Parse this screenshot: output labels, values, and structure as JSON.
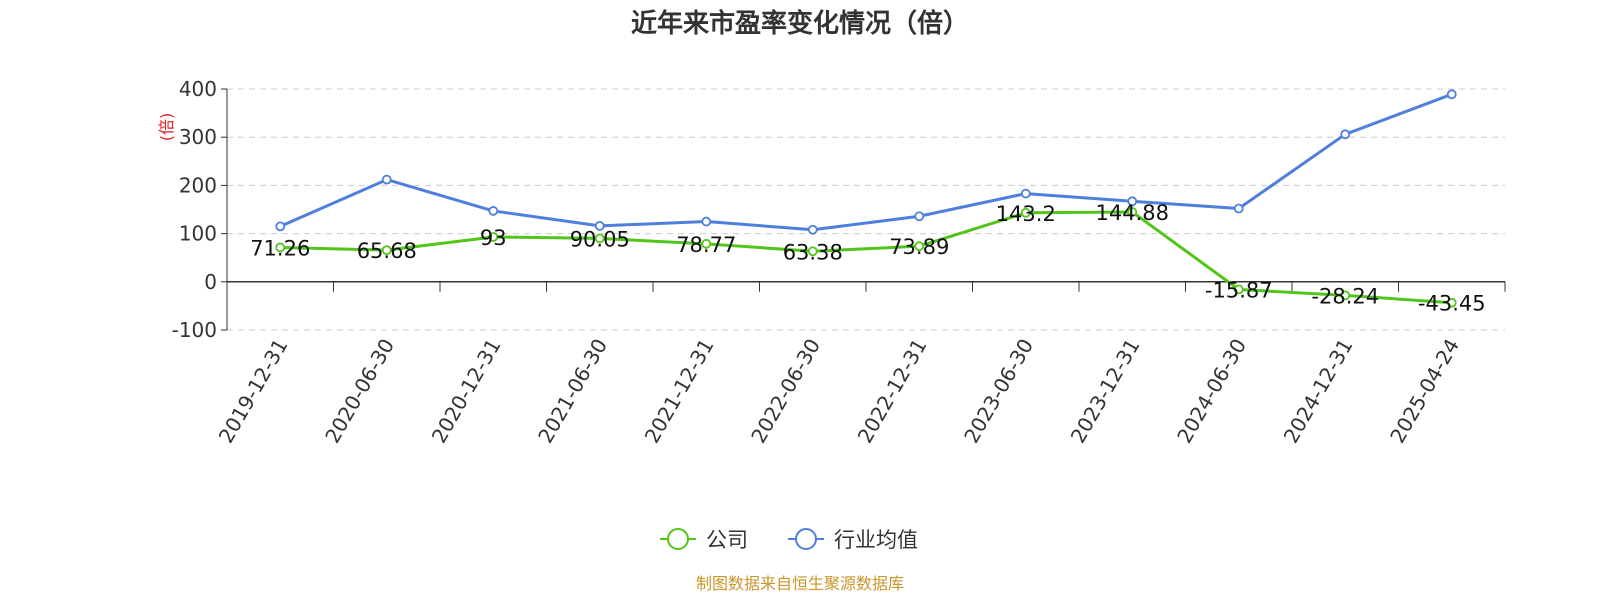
{
  "chart_data": {
    "type": "line",
    "title": "近年来市盈率变化情况（倍）",
    "ylabel": "(倍)",
    "ylim": [
      -100,
      400
    ],
    "yticks": [
      -100,
      0,
      100,
      200,
      300,
      400
    ],
    "grid": true,
    "legend_position": "bottom-center",
    "categories": [
      "2019-12-31",
      "2020-06-30",
      "2020-12-31",
      "2021-06-30",
      "2021-12-31",
      "2022-06-30",
      "2022-12-31",
      "2023-06-30",
      "2023-12-31",
      "2024-06-30",
      "2024-12-31",
      "2025-04-24"
    ],
    "series": [
      {
        "name": "公司",
        "color": "#52c41a",
        "values": [
          71.26,
          65.68,
          93,
          90.05,
          78.77,
          63.38,
          73.89,
          143.2,
          144.88,
          -15.87,
          -28.24,
          -43.45
        ],
        "labels": [
          "71.26",
          "65.68",
          "93",
          "90.05",
          "78.77",
          "63.38",
          "73.89",
          "143.2",
          "144.88",
          "-15.87",
          "-28.24",
          "-43.45"
        ]
      },
      {
        "name": "行业均值",
        "color": "#4f7fdc",
        "values": [
          115,
          212,
          147,
          116,
          125,
          108,
          136,
          183,
          167,
          152,
          306,
          389
        ]
      }
    ],
    "source": "制图数据来自恒生聚源数据库",
    "source_color": "#c8962a",
    "unit_color": "#e02020"
  }
}
